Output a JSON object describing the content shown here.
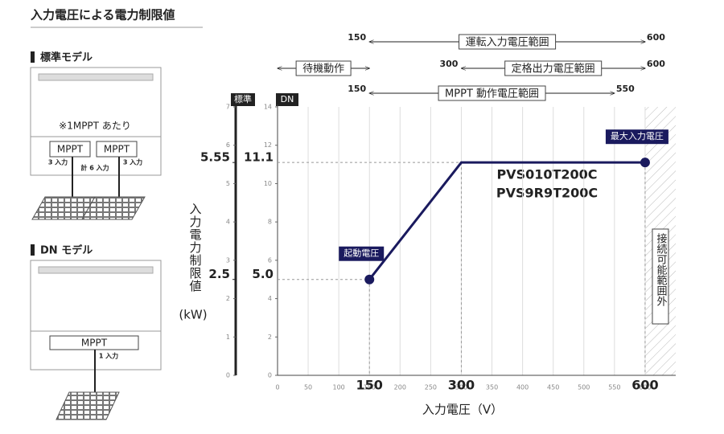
{
  "chart_data": {
    "type": "line",
    "title": "入力電圧による電力制限値",
    "x_label": "入力電圧（V）",
    "y_label": "入力電力制限値",
    "y_unit": "(kW)",
    "y_axis_name": "DN",
    "y2_axis_name": "標準",
    "xlim": [
      0,
      650
    ],
    "xticks": [
      0,
      50,
      100,
      150,
      200,
      250,
      300,
      350,
      400,
      450,
      500,
      550,
      600
    ],
    "ylim": [
      0,
      14
    ],
    "yticks": [
      0,
      2,
      4,
      6,
      8,
      10,
      12,
      14
    ],
    "y2lim": [
      0,
      7
    ],
    "y2ticks": [
      0,
      1,
      2,
      3,
      4,
      5,
      6,
      7
    ],
    "x_highlight_ticks": [
      150,
      300,
      600
    ],
    "y_highlight_ticks": [
      11.1,
      {
        "value": 5,
        "label": "5.0"
      }
    ],
    "y2_highlight_ticks": [
      5.55,
      2.5
    ],
    "series": [
      {
        "color": "#1a1a5e",
        "x": [
          150,
          300,
          600
        ],
        "values": [
          5,
          11.1,
          11.1
        ]
      }
    ],
    "model_labels": [
      "PVS010T200C",
      "PVS9R9T200C"
    ],
    "annotations": [
      {
        "text": "起動電圧",
        "x": 150,
        "y": 5
      },
      {
        "text": "最大入力電圧",
        "x": 600,
        "y": 11.1
      }
    ],
    "ranges": [
      {
        "label": "運転入力電圧範囲",
        "start": 150,
        "end": 600,
        "end_labels": true
      },
      {
        "label": "待機動作",
        "start": 0,
        "end": 150,
        "end_labels": false
      },
      {
        "label": "定格出力電圧範囲",
        "start": 300,
        "end": 600,
        "end_labels": true
      },
      {
        "label": "MPPT 動作電圧範囲",
        "start": 150,
        "end": 550,
        "end_labels": true
      }
    ],
    "out_of_range": {
      "label": "接続可能範囲外",
      "start": 600
    },
    "grid": true
  },
  "models": {
    "standard": {
      "title": "標準モデル",
      "note": "※1MPPT あたり",
      "mppt": [
        "MPPT",
        "MPPT"
      ],
      "inputs": [
        "3 入力",
        "3 入力"
      ],
      "total": "計 6 入力"
    },
    "dn": {
      "title": "DN モデル",
      "mppt": "MPPT",
      "inputs": "1 入力"
    }
  }
}
